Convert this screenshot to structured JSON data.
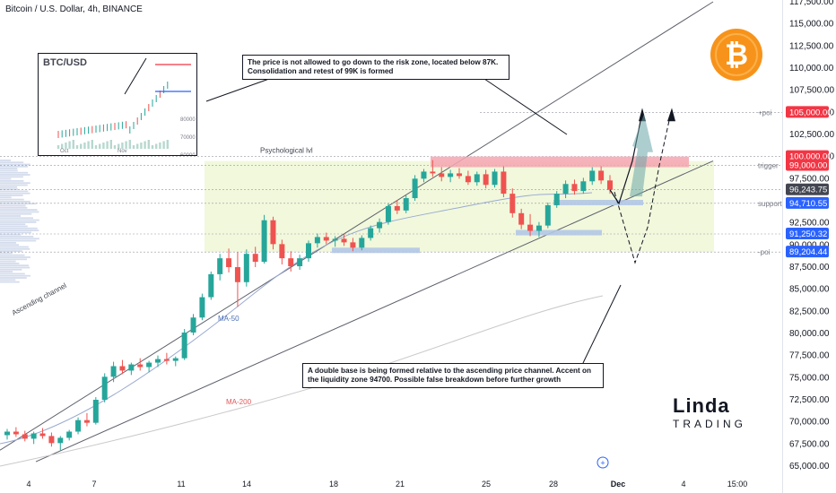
{
  "header": {
    "title": "Bitcoin / U.S. Dollar, 4h, BINANCE"
  },
  "colors": {
    "up": "#26a69a",
    "down": "#ef5350",
    "resistance": "#f4a6b0",
    "support": "#b2c6e6",
    "zone": "#eef7d6",
    "target_label": "#f23645",
    "current_label": "#434651",
    "support_label": "#2962ff",
    "ma50": "#4a6fb5",
    "ma200": "#c9c9c9",
    "btc_coin": "#f7931a"
  },
  "chart_data": {
    "type": "candlestick",
    "y_ticks": [
      "117,500.00",
      "115,000.00",
      "112,500.00",
      "110,000.00",
      "107,500.00",
      "105,000.00",
      "102,500.00",
      "100,000.00",
      "97,500.00",
      "95,000.00",
      "92,500.00",
      "90,000.00",
      "87,500.00",
      "85,000.00",
      "82,500.00",
      "80,000.00",
      "77,500.00",
      "75,000.00",
      "72,500.00",
      "70,000.00",
      "67,500.00",
      "65,000.00"
    ],
    "ylim": [
      65000,
      117500
    ],
    "x_ticks": [
      "4",
      "7",
      "11",
      "14",
      "18",
      "21",
      "25",
      "28",
      "Dec",
      "4",
      "15:00"
    ],
    "price_labels": [
      {
        "text": "105,000.00",
        "kind": "target",
        "value": 105000
      },
      {
        "text": "100,000.00",
        "kind": "target",
        "value": 100000
      },
      {
        "text": "99,000.00",
        "kind": "target",
        "value": 99000
      },
      {
        "text": "96,243.75",
        "kind": "current",
        "value": 96243.75
      },
      {
        "text": "94,710.55",
        "kind": "support",
        "value": 94710.55
      },
      {
        "text": "91,250.32",
        "kind": "support",
        "value": 91250.32
      },
      {
        "text": "89,204.44",
        "kind": "support",
        "value": 89204.44
      }
    ],
    "side_labels": [
      {
        "text": "+poi",
        "value": 105000
      },
      {
        "text": "trigger",
        "value": 99000
      },
      {
        "text": "support",
        "value": 94710
      },
      {
        "text": "-poi",
        "value": 89204
      }
    ],
    "annotations": {
      "psych": "Psychological lvl",
      "channel": "Ascending channel",
      "ma50": "MA-50",
      "ma200": "MA-200"
    },
    "candles": [
      [
        68500,
        69200,
        68000,
        68900
      ],
      [
        68900,
        69400,
        68300,
        68600
      ],
      [
        68600,
        69000,
        67800,
        68100
      ],
      [
        68100,
        68900,
        67500,
        68700
      ],
      [
        68700,
        69300,
        68100,
        68400
      ],
      [
        68400,
        68800,
        67200,
        67600
      ],
      [
        67600,
        68400,
        66800,
        68200
      ],
      [
        68200,
        69100,
        67900,
        68900
      ],
      [
        68900,
        70500,
        68600,
        70200
      ],
      [
        70200,
        71000,
        69500,
        69900
      ],
      [
        69900,
        72800,
        69700,
        72500
      ],
      [
        72500,
        75500,
        72200,
        75100
      ],
      [
        75100,
        76800,
        74500,
        76300
      ],
      [
        76300,
        77000,
        75400,
        75800
      ],
      [
        75800,
        76700,
        75300,
        76500
      ],
      [
        76500,
        77200,
        75800,
        76200
      ],
      [
        76200,
        76900,
        75600,
        76700
      ],
      [
        76700,
        77500,
        76200,
        77100
      ],
      [
        77100,
        77800,
        76500,
        76900
      ],
      [
        76900,
        77400,
        76300,
        77200
      ],
      [
        77200,
        80500,
        77000,
        80100
      ],
      [
        80100,
        82200,
        79800,
        81800
      ],
      [
        81800,
        84500,
        81500,
        84100
      ],
      [
        84100,
        87000,
        83800,
        86700
      ],
      [
        86700,
        89000,
        86000,
        88500
      ],
      [
        88500,
        89600,
        86900,
        87500
      ],
      [
        87500,
        89200,
        83000,
        85800
      ],
      [
        85800,
        89500,
        85300,
        89000
      ],
      [
        89000,
        89800,
        87500,
        88100
      ],
      [
        88100,
        93400,
        87900,
        92800
      ],
      [
        92800,
        93200,
        89500,
        90100
      ],
      [
        90100,
        90600,
        87800,
        88500
      ],
      [
        88500,
        89300,
        87000,
        87600
      ],
      [
        87600,
        88900,
        87200,
        88500
      ],
      [
        88500,
        90500,
        88100,
        90200
      ],
      [
        90200,
        91300,
        89700,
        90900
      ],
      [
        90900,
        91400,
        90100,
        90500
      ],
      [
        90500,
        91000,
        89800,
        90700
      ],
      [
        90700,
        91200,
        89900,
        90300
      ],
      [
        90300,
        90800,
        89300,
        89700
      ],
      [
        89700,
        91100,
        89400,
        90800
      ],
      [
        90800,
        92200,
        90500,
        91900
      ],
      [
        91900,
        93000,
        91400,
        92600
      ],
      [
        92600,
        94700,
        92300,
        94400
      ],
      [
        94400,
        95100,
        93500,
        93900
      ],
      [
        93900,
        95600,
        93600,
        95300
      ],
      [
        95300,
        97900,
        95000,
        97500
      ],
      [
        97500,
        98600,
        97100,
        98300
      ],
      [
        98300,
        99600,
        97700,
        98100
      ],
      [
        98100,
        98800,
        97200,
        97700
      ],
      [
        97700,
        98500,
        97100,
        98100
      ],
      [
        98100,
        98700,
        97500,
        97800
      ],
      [
        97800,
        98400,
        96800,
        97100
      ],
      [
        97100,
        98300,
        96700,
        98000
      ],
      [
        98000,
        98500,
        96400,
        96800
      ],
      [
        96800,
        98600,
        96500,
        98300
      ],
      [
        98300,
        98900,
        95400,
        95800
      ],
      [
        95800,
        96400,
        93100,
        93600
      ],
      [
        93600,
        94100,
        91800,
        92300
      ],
      [
        92300,
        93500,
        91000,
        91600
      ],
      [
        91600,
        92600,
        90900,
        92200
      ],
      [
        92200,
        94800,
        91900,
        94500
      ],
      [
        94500,
        96100,
        94200,
        95800
      ],
      [
        95800,
        97300,
        95300,
        96900
      ],
      [
        96900,
        97400,
        95700,
        96100
      ],
      [
        96100,
        97600,
        95800,
        97200
      ],
      [
        97200,
        98800,
        96800,
        98400
      ],
      [
        98400,
        98900,
        96900,
        97300
      ],
      [
        97300,
        97900,
        95800,
        96243
      ]
    ]
  },
  "callouts": {
    "top": "The price is not allowed to go down to the risk zone, located below 87K. Consolidation and retest of 99K is formed",
    "bottom": "A double base is being formed relative to the ascending price channel. Accent on the liquidity zone 94700. Possible false breakdown before further growth"
  },
  "inset": {
    "title": "BTC/USD",
    "y_ticks": [
      "80000",
      "70000",
      "60000"
    ],
    "x_ticks": [
      "Oct",
      "Nov"
    ]
  },
  "logo": {
    "top": "Linda",
    "bottom": "TRADING"
  }
}
